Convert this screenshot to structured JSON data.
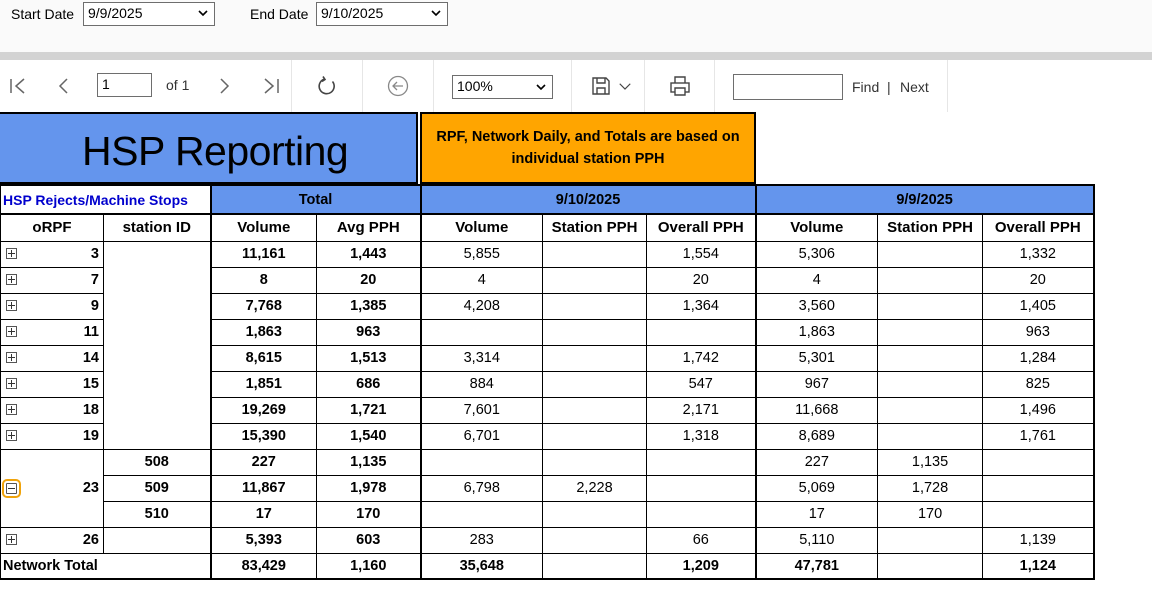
{
  "parameters": {
    "start_label": "Start Date",
    "start_value": "9/9/2025",
    "end_label": "End Date",
    "end_value": "9/10/2025"
  },
  "toolbar": {
    "page_value": "1",
    "page_of": "of 1",
    "zoom_value": "100%",
    "find_label": "Find",
    "find_separator": "|",
    "next_label": "Next"
  },
  "report": {
    "title": "HSP Reporting",
    "note": "RPF, Network Daily, and Totals are based on individual station PPH",
    "link_label": "HSP Rejects/Machine Stops",
    "group_total": "Total",
    "group_date1": "9/10/2025",
    "group_date2": "9/9/2025",
    "columns": {
      "orpf": "oRPF",
      "station_id": "station ID",
      "volume": "Volume",
      "avg_pph": "Avg PPH",
      "volume1": "Volume",
      "station_pph1": "Station PPH",
      "overall_pph1": "Overall PPH",
      "volume2": "Volume",
      "station_pph2": "Station PPH",
      "overall_pph2": "Overall PPH"
    },
    "rows": [
      {
        "rpf": "3",
        "station": "",
        "vol": "11,161",
        "avg": "1,443",
        "v1": "5,855",
        "s1": "",
        "o1": "1,554",
        "v2": "5,306",
        "s2": "",
        "o2": "1,332"
      },
      {
        "rpf": "7",
        "station": "",
        "vol": "8",
        "avg": "20",
        "v1": "4",
        "s1": "",
        "o1": "20",
        "v2": "4",
        "s2": "",
        "o2": "20"
      },
      {
        "rpf": "9",
        "station": "",
        "vol": "7,768",
        "avg": "1,385",
        "v1": "4,208",
        "s1": "",
        "o1": "1,364",
        "v2": "3,560",
        "s2": "",
        "o2": "1,405"
      },
      {
        "rpf": "11",
        "station": "",
        "vol": "1,863",
        "avg": "963",
        "v1": "",
        "s1": "",
        "o1": "",
        "v2": "1,863",
        "s2": "",
        "o2": "963"
      },
      {
        "rpf": "14",
        "station": "",
        "vol": "8,615",
        "avg": "1,513",
        "v1": "3,314",
        "s1": "",
        "o1": "1,742",
        "v2": "5,301",
        "s2": "",
        "o2": "1,284"
      },
      {
        "rpf": "15",
        "station": "",
        "vol": "1,851",
        "avg": "686",
        "v1": "884",
        "s1": "",
        "o1": "547",
        "v2": "967",
        "s2": "",
        "o2": "825"
      },
      {
        "rpf": "18",
        "station": "",
        "vol": "19,269",
        "avg": "1,721",
        "v1": "7,601",
        "s1": "",
        "o1": "2,171",
        "v2": "11,668",
        "s2": "",
        "o2": "1,496"
      },
      {
        "rpf": "19",
        "station": "",
        "vol": "15,390",
        "avg": "1,540",
        "v1": "6,701",
        "s1": "",
        "o1": "1,318",
        "v2": "8,689",
        "s2": "",
        "o2": "1,761"
      }
    ],
    "expanded": {
      "rpf": "23",
      "stations": [
        {
          "station": "508",
          "vol": "227",
          "avg": "1,135",
          "v1": "",
          "s1": "",
          "o1": "",
          "v2": "227",
          "s2": "1,135",
          "o2": ""
        },
        {
          "station": "509",
          "vol": "11,867",
          "avg": "1,978",
          "v1": "6,798",
          "s1": "2,228",
          "o1": "",
          "v2": "5,069",
          "s2": "1,728",
          "o2": ""
        },
        {
          "station": "510",
          "vol": "17",
          "avg": "170",
          "v1": "",
          "s1": "",
          "o1": "",
          "v2": "17",
          "s2": "170",
          "o2": ""
        }
      ]
    },
    "last_row": {
      "rpf": "26",
      "station": "",
      "vol": "5,393",
      "avg": "603",
      "v1": "283",
      "s1": "",
      "o1": "66",
      "v2": "5,110",
      "s2": "",
      "o2": "1,139"
    },
    "total_row": {
      "label": "Network Total",
      "vol": "83,429",
      "avg": "1,160",
      "v1": "35,648",
      "o1": "1,209",
      "v2": "47,781",
      "o2": "1,124"
    }
  }
}
